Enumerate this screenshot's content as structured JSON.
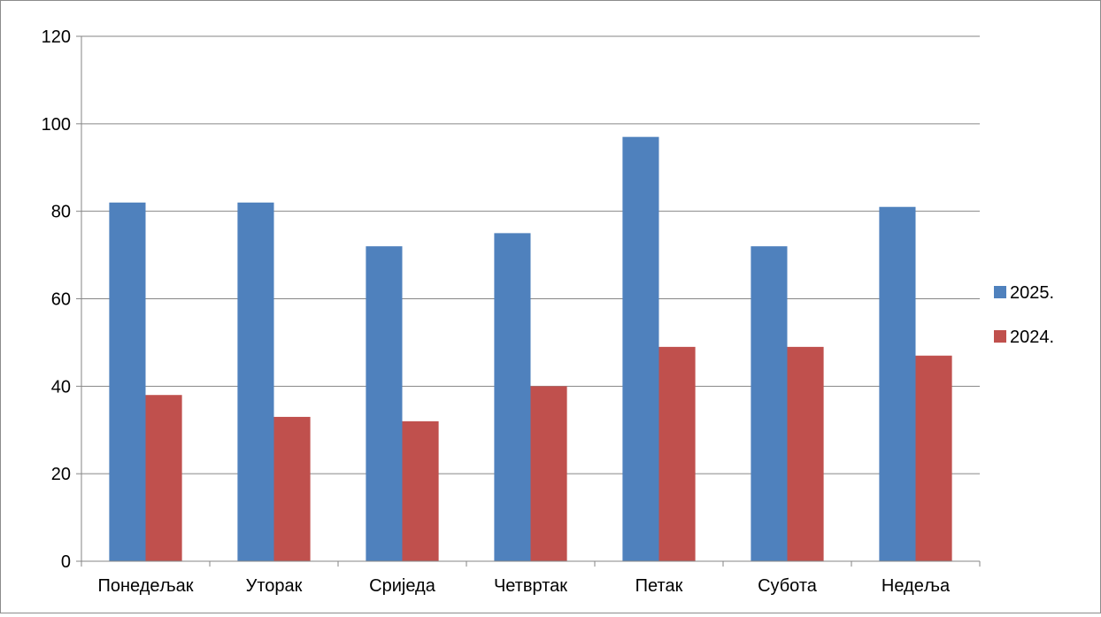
{
  "chart_data": {
    "type": "bar",
    "title": "",
    "xlabel": "",
    "ylabel": "",
    "ylim": [
      0,
      120
    ],
    "yticks": [
      0,
      20,
      40,
      60,
      80,
      100,
      120
    ],
    "grid": true,
    "legend_position": "right",
    "categories": [
      "Понедељак",
      "Уторак",
      "Сриједа",
      "Четвртак",
      "Петак",
      "Субота",
      "Недеља"
    ],
    "series": [
      {
        "name": "2025.",
        "color": "#4f81bd",
        "values": [
          82,
          82,
          72,
          75,
          97,
          72,
          81
        ]
      },
      {
        "name": "2024.",
        "color": "#c0504d",
        "values": [
          38,
          33,
          32,
          40,
          49,
          49,
          47
        ]
      }
    ]
  }
}
